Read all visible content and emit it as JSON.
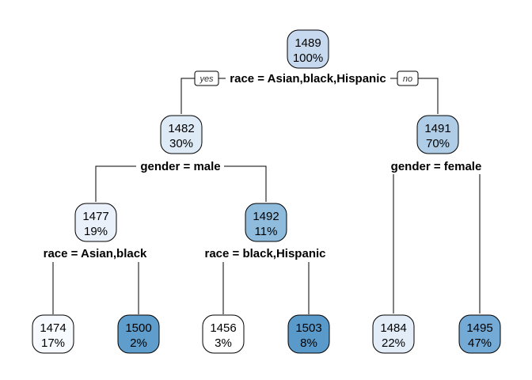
{
  "tree": {
    "nodes": [
      {
        "id": "root",
        "value": "1489",
        "percent": "100%",
        "color": "#c6d9ef"
      },
      {
        "id": "n2",
        "value": "1482",
        "percent": "30%",
        "color": "#deebf7"
      },
      {
        "id": "n3",
        "value": "1491",
        "percent": "70%",
        "color": "#afcde6"
      },
      {
        "id": "n4",
        "value": "1477",
        "percent": "19%",
        "color": "#eaf1fa"
      },
      {
        "id": "n5",
        "value": "1492",
        "percent": "11%",
        "color": "#8fbcdd"
      },
      {
        "id": "l1",
        "value": "1474",
        "percent": "17%",
        "color": "#f7fbff"
      },
      {
        "id": "l2",
        "value": "1500",
        "percent": "2%",
        "color": "#5f9dcc"
      },
      {
        "id": "l3",
        "value": "1456",
        "percent": "3%",
        "color": "#ffffff"
      },
      {
        "id": "l4",
        "value": "1503",
        "percent": "8%",
        "color": "#5a9acb"
      },
      {
        "id": "l5",
        "value": "1484",
        "percent": "22%",
        "color": "#e3edf8"
      },
      {
        "id": "l6",
        "value": "1495",
        "percent": "47%",
        "color": "#74aad6"
      }
    ],
    "splits": [
      {
        "id": "s_root",
        "label": "race = Asian,black,Hispanic"
      },
      {
        "id": "s_n2",
        "label": "gender = male"
      },
      {
        "id": "s_n3",
        "label": "gender = female"
      },
      {
        "id": "s_n4",
        "label": "race = Asian,black"
      },
      {
        "id": "s_n5",
        "label": "race = black,Hispanic"
      }
    ],
    "branch_tags": {
      "yes": "yes",
      "no": "no"
    }
  }
}
